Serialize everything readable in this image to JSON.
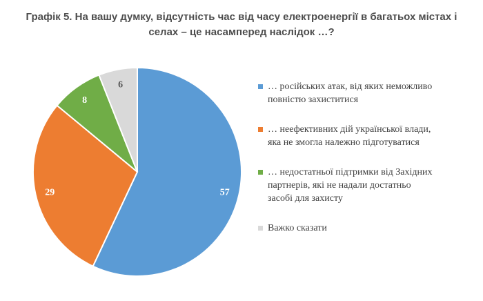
{
  "chart_data": {
    "type": "pie",
    "title_line1": "Графік 5. На вашу думку, відсутність час від часу електроенергії в багатьох містах і",
    "title_line2": "селах – це насамперед наслідок …?",
    "slices": [
      {
        "label": "… російських атак, від яких неможливо повністю захиститися",
        "lines": [
          "… російських атак, від яких неможливо",
          "повністю захиститися"
        ],
        "value": 57,
        "color": "#5b9bd5"
      },
      {
        "label": "… неефективних дій української влади, яка не змогла належно підготуватися",
        "lines": [
          "… неефективних дій української влади,",
          "яка не змогла належно підготуватися"
        ],
        "value": 29,
        "color": "#ed7d31"
      },
      {
        "label": "… недостатньої підтримки від Західних партнерів, які не надали достатньо засобі для захисту",
        "lines": [
          "… недостатньої підтримки від Західних",
          "партнерів, які не надали достатньо",
          "засобі для захисту"
        ],
        "value": 8,
        "color": "#70ad47"
      },
      {
        "label": "Важко сказати",
        "lines": [
          "Важко сказати"
        ],
        "value": 6,
        "color": "#d9d9d9"
      }
    ],
    "legend_position": "right",
    "start": "top, clockwise"
  }
}
